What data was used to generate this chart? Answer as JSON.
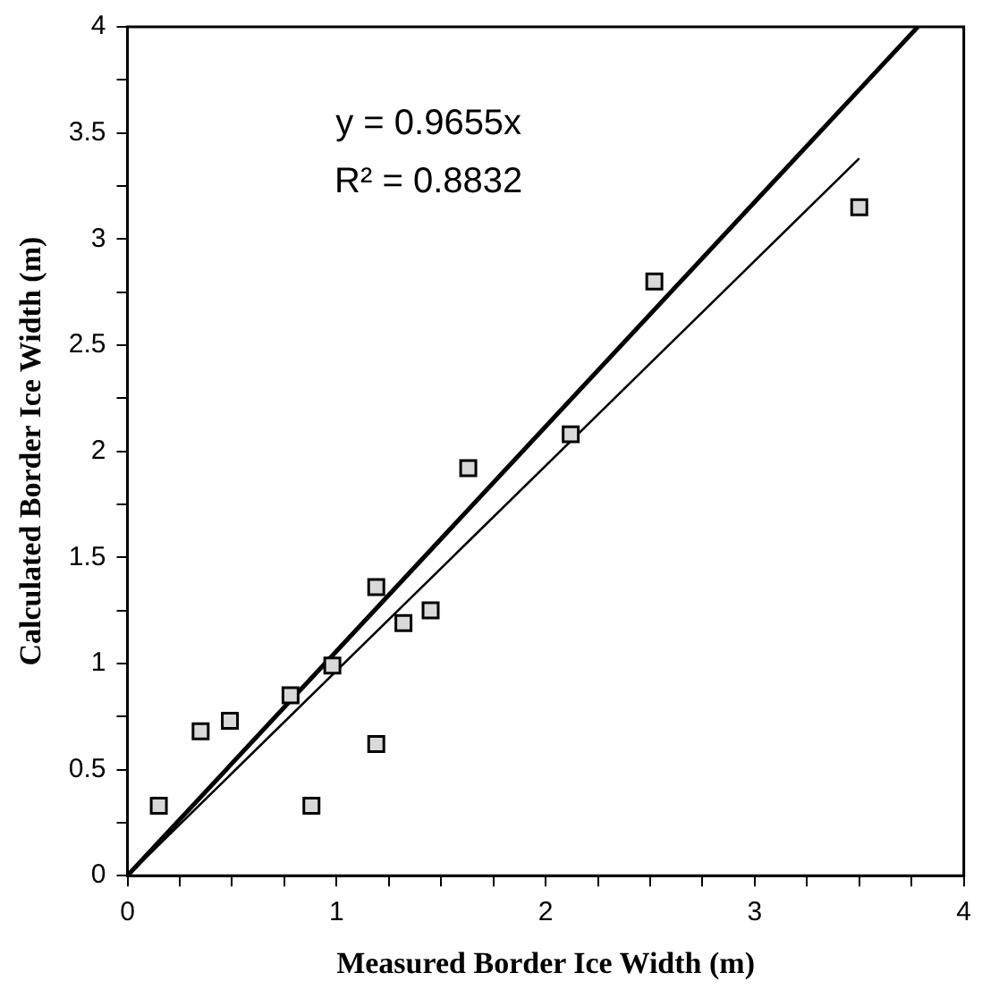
{
  "chart_data": {
    "type": "scatter",
    "xlabel": "Measured Border Ice Width (m)",
    "ylabel": "Calculated Border Ice Width (m)",
    "annotations": [
      "y = 0.9655x",
      "R² = 0.8832"
    ],
    "xlim": [
      0,
      4
    ],
    "ylim": [
      0,
      4
    ],
    "xticks": [
      0,
      {
        "value": 0.25,
        "label": null
      },
      {
        "value": 0.5,
        "label": null
      },
      {
        "value": 0.75,
        "label": null
      },
      1,
      {
        "value": 1.25,
        "label": null
      },
      {
        "value": 1.5,
        "label": null
      },
      {
        "value": 1.75,
        "label": null
      },
      2,
      {
        "value": 2.25,
        "label": null
      },
      {
        "value": 2.5,
        "label": null
      },
      {
        "value": 2.75,
        "label": null
      },
      3,
      {
        "value": 3.25,
        "label": null
      },
      {
        "value": 3.5,
        "label": null
      },
      {
        "value": 3.75,
        "label": null
      },
      4
    ],
    "yticks": [
      0,
      {
        "value": 0.25,
        "label": null
      },
      0.5,
      {
        "value": 0.75,
        "label": null
      },
      1,
      {
        "value": 1.25,
        "label": null
      },
      1.5,
      {
        "value": 1.75,
        "label": null
      },
      2,
      {
        "value": 2.25,
        "label": null
      },
      2.5,
      {
        "value": 2.75,
        "label": null
      },
      3,
      {
        "value": 3.25,
        "label": null
      },
      3.5,
      {
        "value": 3.75,
        "label": null
      },
      4
    ],
    "grid": false,
    "legend": false,
    "marker": "square",
    "series": [
      {
        "type": "scatter",
        "color": "#d9d9d9",
        "x": [
          0.15,
          0.35,
          0.49,
          0.78,
          0.88,
          0.98,
          1.19,
          1.19,
          1.32,
          1.45,
          1.63,
          2.12,
          2.52,
          3.5
        ],
        "values": [
          0.33,
          0.68,
          0.73,
          0.85,
          0.33,
          0.99,
          1.36,
          0.62,
          1.19,
          1.25,
          1.92,
          2.08,
          2.8,
          3.15
        ]
      },
      {
        "type": "line",
        "color": "#000000",
        "x": [
          0,
          3.78
        ],
        "values": [
          0,
          4
        ],
        "marker": "none"
      },
      {
        "type": "line",
        "color": "#000000",
        "x": [
          0,
          3.5
        ],
        "values": [
          0,
          3.38
        ],
        "marker": "none"
      }
    ]
  }
}
